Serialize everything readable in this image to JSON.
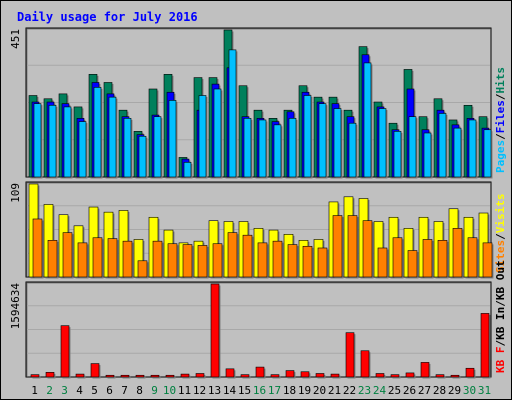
{
  "chart_data": {
    "type": "bar",
    "title": "Daily usage for July 2016",
    "categories": [
      "1",
      "2",
      "3",
      "4",
      "5",
      "6",
      "7",
      "8",
      "9",
      "10",
      "11",
      "12",
      "13",
      "14",
      "15",
      "16",
      "17",
      "18",
      "19",
      "20",
      "21",
      "22",
      "23",
      "24",
      "25",
      "26",
      "27",
      "28",
      "29",
      "30",
      "31"
    ],
    "weekend_days": [
      "2",
      "3",
      "9",
      "10",
      "16",
      "17",
      "23",
      "24",
      "30",
      "31"
    ],
    "panels": [
      {
        "id": "hits",
        "ymax": 451,
        "ymax_label": "451",
        "legend": [
          "Pages",
          "Files",
          "Hits"
        ],
        "series": [
          {
            "name": "Hits",
            "color": "#00805c",
            "values": [
              250,
              240,
              255,
              215,
              315,
              290,
              205,
              140,
              270,
              315,
              60,
              305,
              305,
              451,
              280,
              205,
              180,
              205,
              280,
              245,
              245,
              205,
              400,
              230,
              165,
              330,
              185,
              240,
              175,
              220,
              185
            ]
          },
          {
            "name": "Files",
            "color": "#0000ff",
            "values": [
              230,
              230,
              225,
              180,
              290,
              255,
              185,
              130,
              190,
              260,
              55,
              205,
              285,
              335,
              185,
              180,
              170,
              200,
              260,
              230,
              225,
              185,
              375,
              215,
              145,
              270,
              145,
              205,
              160,
              180,
              150
            ]
          },
          {
            "name": "Pages",
            "color": "#00c0ff",
            "values": [
              225,
              220,
              215,
              170,
              275,
              245,
              180,
              125,
              185,
              235,
              45,
              250,
              270,
              390,
              180,
              175,
              160,
              180,
              250,
              225,
              210,
              165,
              350,
              210,
              140,
              185,
              135,
              195,
              150,
              175,
              145
            ]
          }
        ]
      },
      {
        "id": "visits",
        "ymax": 109,
        "ymax_label": "109",
        "legend": [
          "Sites",
          "Visits"
        ],
        "series": [
          {
            "name": "Visits",
            "color": "#ffff00",
            "values": [
              109,
              85,
              73,
              60,
              82,
              76,
              78,
              44,
              70,
              55,
              40,
              42,
              66,
              65,
              65,
              57,
              55,
              50,
              43,
              44,
              88,
              94,
              92,
              65,
              70,
              57,
              70,
              65,
              80,
              70,
              75
            ]
          },
          {
            "name": "Sites",
            "color": "#ff8000",
            "values": [
              68,
              43,
              52,
              40,
              46,
              45,
              42,
              19,
              42,
              39,
              38,
              37,
              39,
              52,
              49,
              40,
              42,
              38,
              36,
              34,
              72,
              72,
              66,
              34,
              46,
              31,
              44,
              43,
              57,
              46,
              40
            ]
          }
        ]
      },
      {
        "id": "kbytes",
        "ymax": 1594634,
        "ymax_label": "1594634",
        "legend": [
          "KB F",
          "KB In",
          "KB Out"
        ],
        "series": [
          {
            "name": "KB F",
            "color": "#ff0000",
            "values": [
              40000,
              80000,
              880000,
              50000,
              230000,
              30000,
              30000,
              30000,
              30000,
              30000,
              50000,
              60000,
              1594634,
              140000,
              40000,
              170000,
              40000,
              110000,
              90000,
              60000,
              50000,
              760000,
              450000,
              60000,
              40000,
              70000,
              250000,
              40000,
              30000,
              150000,
              1090000
            ]
          }
        ]
      }
    ]
  }
}
